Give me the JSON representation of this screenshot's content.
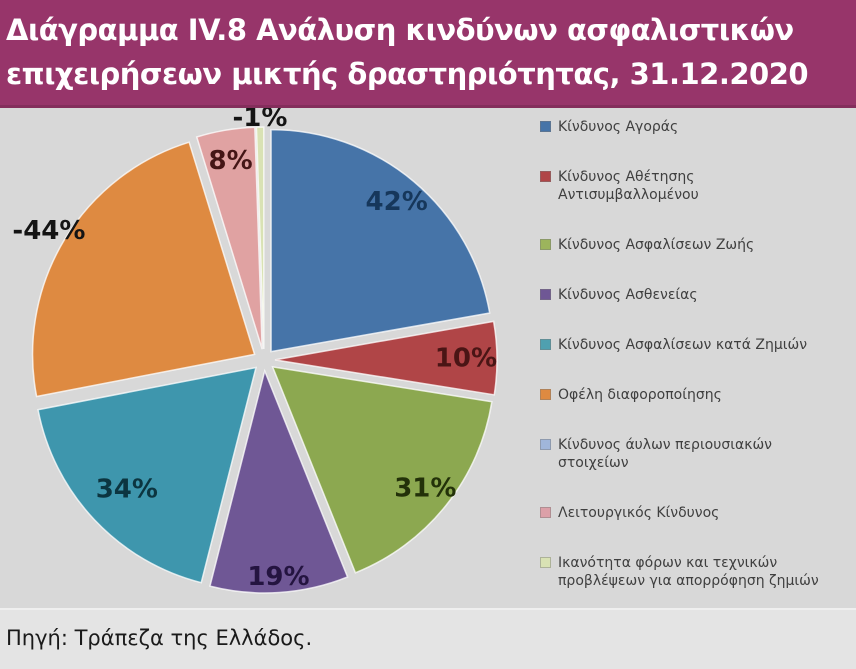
{
  "header": {
    "title_line1": "Διάγραμμα IV.8 Ανάλυση κινδύνων ασφαλιστικών",
    "title_line2": "επιχειρήσεων μικτής δραστηριότητας, 31.12.2020",
    "title_bg_color": "#97356A",
    "title_text_color": "#FFFFFF"
  },
  "chart_data": {
    "type": "pie",
    "title": "Ανάλυση κινδύνων ασφαλιστικών επιχειρήσεων μικτής δραστηριότητας, 31.12.2020",
    "unit": "%",
    "legend_position": "right",
    "slices": [
      {
        "label": "Κίνδυνος Αγοράς",
        "value": 42,
        "display": "42%",
        "color": "#4674A8",
        "label_color": "#16375B",
        "label_r": 0.88
      },
      {
        "label": "Κίνδυνος Αθέτησης Αντισυμβαλλομένου",
        "value": 10,
        "display": "10%",
        "color": "#B04547",
        "label_color": "#4A1515",
        "label_r": 0.86
      },
      {
        "label": "Κίνδυνος Ασφαλίσεων Ζωής",
        "value": 31,
        "display": "31%",
        "color": "#8CA850",
        "label_color": "#233109",
        "label_r": 0.88
      },
      {
        "label": "Κίνδυνος Ασθενείας",
        "value": 19,
        "display": "19%",
        "color": "#6F5795",
        "label_color": "#241440",
        "label_r": 0.93
      },
      {
        "label": "Κίνδυνος Ασφαλίσεων κατά Ζημιών",
        "value": 34,
        "display": "34%",
        "color": "#3E96AD",
        "label_color": "#0C3540",
        "label_r": 0.8
      },
      {
        "label": "Οφέλη διαφοροποίησης",
        "value": -44,
        "display": "-44%",
        "color": "#DE8A41",
        "label_color": "#141414",
        "label_r": 1.08
      },
      {
        "label": "Λειτουργικός Κίνδυνος",
        "value": 8,
        "display": "8%",
        "color": "#E0A2A2",
        "label_color": "#451616",
        "label_r": 0.86
      },
      {
        "label": "Ικανότητα φόρων και τεχνικών προβλέψεων για απορρόφηση ζημιών",
        "value": -1,
        "display": "-1%",
        "color": "#D9E2B4",
        "label_color": "#141414",
        "label_r": 1.04
      }
    ]
  },
  "legend": {
    "items": [
      {
        "label": "Κίνδυνος Αγοράς",
        "color": "#4674A8"
      },
      {
        "label": "Κίνδυνος Αθέτησης\nΑντισυμβαλλομένου",
        "color": "#B04547"
      },
      {
        "label": "Κίνδυνος Ασφαλίσεων Ζωής",
        "color": "#9CB45C"
      },
      {
        "label": "Κίνδυνος Ασθενείας",
        "color": "#6F5795"
      },
      {
        "label": "Κίνδυνος Ασφαλίσεων κατά Ζημιών",
        "color": "#4FA0B0"
      },
      {
        "label": "Οφέλη διαφοροποίησης",
        "color": "#DE8A41"
      },
      {
        "label": "Κίνδυνος άυλων περιουσιακών\nστοιχείων",
        "color": "#A0B6DA"
      },
      {
        "label": "Λειτουργικός Κίνδυνος",
        "color": "#DCA0A8"
      },
      {
        "label": "Ικανότητα φόρων και τεχνικών\nπροβλέψεων για απορρόφηση ζημιών",
        "color": "#D9E2B4"
      }
    ]
  },
  "footer": {
    "source": "Πηγή: Τράπεζα της Ελλάδος."
  }
}
